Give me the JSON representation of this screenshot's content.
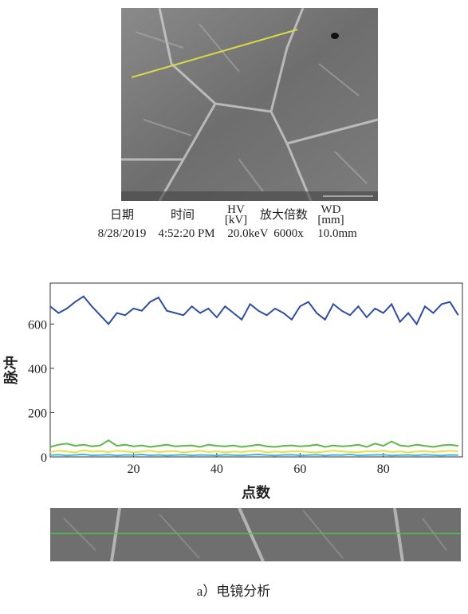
{
  "sem": {
    "headers": [
      "日期",
      "时间",
      "HV",
      "[kV]",
      "放大倍数",
      "WD",
      "[mm]"
    ],
    "values": [
      "8/28/2019",
      "4:52:20 PM",
      "20.0keV",
      "6000x",
      "10.0mm"
    ]
  },
  "chart_data": {
    "type": "line",
    "x_label": "点数",
    "y_label": "脉冲",
    "x": [
      0,
      2,
      4,
      6,
      8,
      10,
      12,
      14,
      16,
      18,
      20,
      22,
      24,
      26,
      28,
      30,
      32,
      34,
      36,
      38,
      40,
      42,
      44,
      46,
      48,
      50,
      52,
      54,
      56,
      58,
      60,
      62,
      64,
      66,
      68,
      70,
      72,
      74,
      76,
      78,
      80,
      82,
      84,
      86,
      88,
      90,
      92,
      94,
      96,
      98
    ],
    "series": [
      {
        "color": "#2f4ea0",
        "values": [
          680,
          650,
          670,
          700,
          725,
          680,
          640,
          600,
          650,
          640,
          670,
          660,
          700,
          720,
          660,
          650,
          640,
          680,
          650,
          670,
          630,
          680,
          650,
          620,
          690,
          660,
          640,
          670,
          650,
          620,
          680,
          700,
          650,
          620,
          690,
          660,
          640,
          680,
          630,
          670,
          650,
          690,
          610,
          650,
          600,
          680,
          650,
          690,
          700,
          640
        ]
      },
      {
        "color": "#5db84a",
        "values": [
          45,
          55,
          60,
          50,
          55,
          48,
          52,
          75,
          50,
          55,
          48,
          52,
          45,
          50,
          55,
          48,
          50,
          52,
          45,
          55,
          50,
          48,
          52,
          45,
          50,
          55,
          48,
          45,
          50,
          52,
          48,
          50,
          55,
          45,
          52,
          48,
          50,
          55,
          45,
          60,
          50,
          70,
          52,
          48,
          55,
          50,
          45,
          52,
          55,
          50
        ]
      },
      {
        "color": "#e8e040",
        "values": [
          22,
          28,
          25,
          20,
          30,
          24,
          26,
          22,
          28,
          25,
          20,
          24,
          28,
          22,
          25,
          26,
          20,
          24,
          28,
          22,
          25,
          20,
          24,
          22,
          26,
          28,
          20,
          24,
          22,
          25,
          26,
          22,
          20,
          24,
          28,
          25,
          22,
          20,
          26,
          24,
          28,
          22,
          25,
          20,
          24,
          26,
          22,
          25,
          28,
          24
        ]
      },
      {
        "color": "#40b8e0",
        "values": [
          8,
          10,
          6,
          9,
          12,
          7,
          8,
          10,
          6,
          9,
          8,
          11,
          7,
          9,
          6,
          8,
          10,
          7,
          9,
          8,
          6,
          10,
          8,
          7,
          9,
          11,
          8,
          6,
          9,
          10,
          7,
          8,
          10,
          6,
          9,
          8,
          11,
          7,
          8,
          9,
          10,
          6,
          8,
          9,
          7,
          10,
          8,
          6,
          9,
          8
        ]
      }
    ],
    "xlim": [
      0,
      99
    ],
    "ylim": [
      0,
      785
    ],
    "xticks": [
      20,
      40,
      60,
      80
    ],
    "yticks": [
      0,
      200,
      400,
      600
    ]
  },
  "caption": "a）电镜分析"
}
